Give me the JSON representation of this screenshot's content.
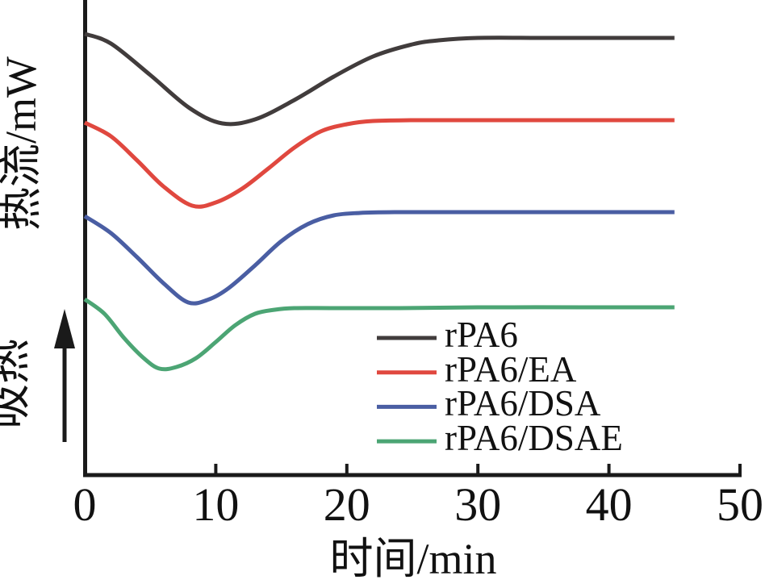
{
  "axes": {
    "y_label": "热流/mW",
    "endo_label": "吸热",
    "x_label": "时间/min",
    "x_ticks": [
      0,
      10,
      20,
      30,
      40,
      50
    ],
    "x_tick_labels": [
      "0",
      "10",
      "20",
      "30",
      "40",
      "50"
    ],
    "x_range": [
      0,
      50
    ]
  },
  "colors": {
    "axis": "#1a1a1a",
    "text": "#111111"
  },
  "chart_data": {
    "type": "line",
    "title": "",
    "xlabel": "时间/min",
    "ylabel": "热流/mW",
    "x_unit": "min",
    "xlim": [
      0,
      50
    ],
    "ylim": [
      0,
      600
    ],
    "y_units_note": "y axis unlabeled (arbitrary heat-flow units, endothermic up per 吸热 arrow); curves vertically offset for clarity",
    "grid": false,
    "legend_position": "inside lower-right of plot",
    "series": [
      {
        "name": "rPA6",
        "color": "#413c3c",
        "points": [
          [
            0,
            558
          ],
          [
            2,
            546
          ],
          [
            5,
            507
          ],
          [
            8,
            466
          ],
          [
            10.5,
            447
          ],
          [
            13,
            452
          ],
          [
            16,
            476
          ],
          [
            19,
            505
          ],
          [
            22,
            530
          ],
          [
            25,
            545
          ],
          [
            27,
            550
          ],
          [
            30,
            553
          ],
          [
            35,
            553
          ],
          [
            40,
            553
          ],
          [
            45,
            553
          ]
        ]
      },
      {
        "name": "rPA6/EA",
        "color": "#e0483f",
        "points": [
          [
            0,
            448
          ],
          [
            2,
            431
          ],
          [
            4,
            401
          ],
          [
            6,
            369
          ],
          [
            8.2,
            345
          ],
          [
            10,
            349
          ],
          [
            12,
            366
          ],
          [
            14,
            391
          ],
          [
            16,
            417
          ],
          [
            18,
            437
          ],
          [
            20,
            446
          ],
          [
            22,
            450
          ],
          [
            25,
            451
          ],
          [
            30,
            451
          ],
          [
            35,
            451
          ],
          [
            40,
            451
          ],
          [
            45,
            451
          ]
        ]
      },
      {
        "name": "rPA6/DSA",
        "color": "#4a5ea3",
        "points": [
          [
            0,
            332
          ],
          [
            2,
            311
          ],
          [
            4,
            281
          ],
          [
            6,
            249
          ],
          [
            7.9,
            225
          ],
          [
            9.5,
            229
          ],
          [
            11,
            243
          ],
          [
            13,
            271
          ],
          [
            15,
            301
          ],
          [
            17,
            322
          ],
          [
            19,
            333
          ],
          [
            21,
            336
          ],
          [
            24,
            337
          ],
          [
            28,
            337
          ],
          [
            33,
            337
          ],
          [
            39,
            337
          ],
          [
            45,
            337
          ]
        ]
      },
      {
        "name": "rPA6/DSAE",
        "color": "#4ca574",
        "points": [
          [
            0,
            229
          ],
          [
            1.5,
            211
          ],
          [
            3,
            181
          ],
          [
            4.5,
            156
          ],
          [
            5.7,
            143
          ],
          [
            7,
            145
          ],
          [
            8.5,
            156
          ],
          [
            10,
            176
          ],
          [
            11.5,
            197
          ],
          [
            13,
            211
          ],
          [
            14.5,
            216
          ],
          [
            16,
            218
          ],
          [
            19,
            218
          ],
          [
            24,
            218
          ],
          [
            30,
            219
          ],
          [
            38,
            219
          ],
          [
            45,
            219
          ]
        ]
      }
    ]
  }
}
